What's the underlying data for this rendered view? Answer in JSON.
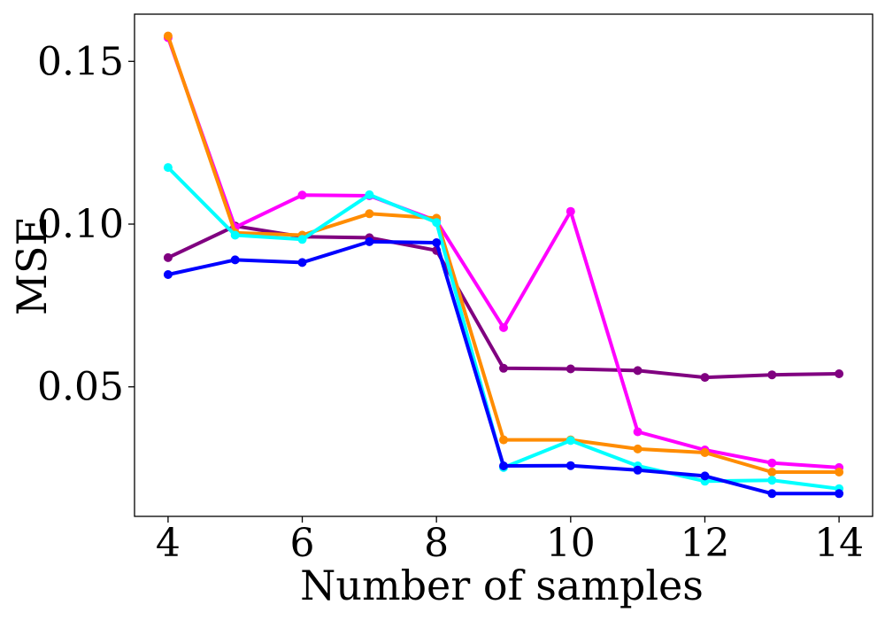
{
  "chart_data": {
    "type": "line",
    "title": "",
    "xlabel": "Number of samples",
    "ylabel": "MSE",
    "xlim": [
      3.5,
      14.5
    ],
    "ylim": [
      0.0102,
      0.1645
    ],
    "xticks": [
      4,
      6,
      8,
      10,
      12,
      14
    ],
    "xtick_labels": [
      "4",
      "6",
      "8",
      "10",
      "12",
      "14"
    ],
    "yticks": [
      0.05,
      0.1,
      0.15
    ],
    "ytick_labels": [
      "0.05",
      "0.10",
      "0.15"
    ],
    "grid": false,
    "x": [
      4,
      5,
      6,
      7,
      8,
      9,
      10,
      11,
      12,
      13,
      14
    ],
    "series": [
      {
        "name": "purple",
        "color": "#800080",
        "values": [
          0.0897,
          0.0994,
          0.0961,
          0.0958,
          0.0919,
          0.0557,
          0.0555,
          0.055,
          0.0529,
          0.0537,
          0.054
        ]
      },
      {
        "name": "magenta",
        "color": "#ff00ff",
        "values": [
          0.1573,
          0.099,
          0.1089,
          0.1087,
          0.101,
          0.0682,
          0.1039,
          0.0362,
          0.0306,
          0.0266,
          0.0252
        ]
      },
      {
        "name": "orange",
        "color": "#ff8c00",
        "values": [
          0.1578,
          0.0973,
          0.0966,
          0.1032,
          0.1018,
          0.0337,
          0.0337,
          0.0309,
          0.0298,
          0.0238,
          0.0238
        ]
      },
      {
        "name": "cyan",
        "color": "#00ffff",
        "values": [
          0.1174,
          0.0966,
          0.0953,
          0.109,
          0.1005,
          0.0252,
          0.0335,
          0.0257,
          0.021,
          0.0213,
          0.0187
        ]
      },
      {
        "name": "blue",
        "color": "#0000ff",
        "values": [
          0.0845,
          0.089,
          0.0882,
          0.0946,
          0.0943,
          0.0257,
          0.0258,
          0.0244,
          0.0226,
          0.0172,
          0.0172
        ]
      }
    ]
  }
}
